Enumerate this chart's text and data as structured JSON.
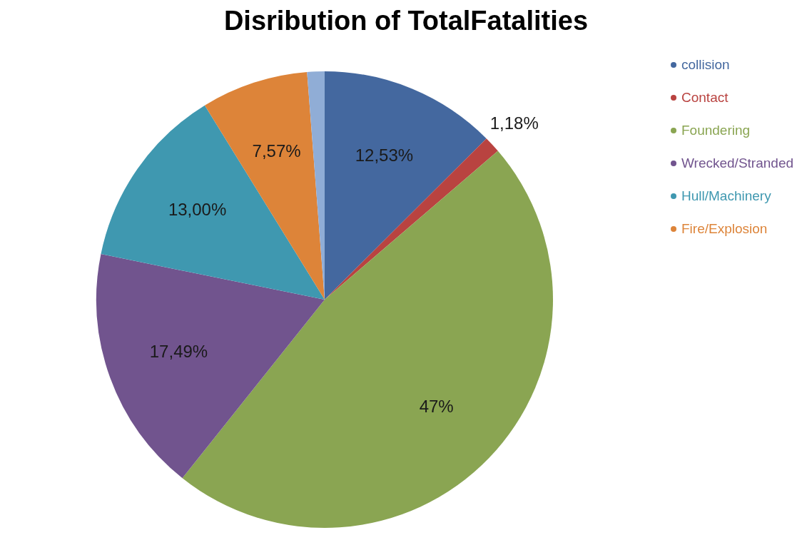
{
  "chart_data": {
    "type": "pie",
    "title": "Disribution of TotalFatalities",
    "categories": [
      "collision",
      "Contact",
      "Foundering",
      "Wrecked/Stranded",
      "Hull/Machinery",
      "Fire/Explosion",
      null
    ],
    "values": [
      12.53,
      1.18,
      47,
      17.49,
      13.0,
      7.57,
      1.23
    ],
    "colors": [
      "#44689f",
      "#b94340",
      "#8aa552",
      "#71548e",
      "#3f98b0",
      "#dd8439",
      "#90add6"
    ],
    "value_labels": [
      "12,53%",
      "1,18%",
      "47%",
      "17,49%",
      "13,00%",
      "7,57%",
      null
    ],
    "legend": "top right"
  }
}
